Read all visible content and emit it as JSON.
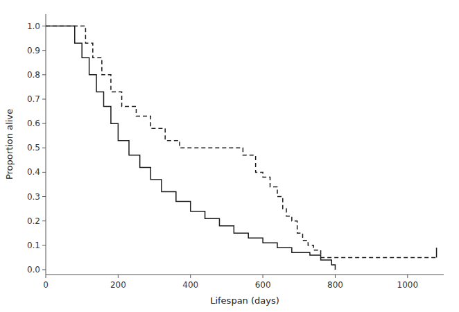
{
  "chart_data": {
    "type": "step",
    "xlabel": "Lifespan (days)",
    "ylabel": "Proportion alive",
    "xlim": [
      0,
      1100
    ],
    "ylim": [
      -0.02,
      1.05
    ],
    "xticks": [
      0,
      200,
      400,
      600,
      800,
      1000
    ],
    "yticks": [
      {
        "value": 0.0,
        "label": "0.0"
      },
      0.1,
      0.2,
      0.3,
      0.4,
      0.5,
      0.6,
      0.7,
      0.8,
      0.9,
      {
        "value": 1.0,
        "label": "1.0"
      }
    ],
    "color": "#1a1a1a",
    "grid": false,
    "series": [
      {
        "type": "step",
        "line_style": "solid",
        "x": [
          0,
          60,
          80,
          100,
          120,
          140,
          160,
          180,
          200,
          230,
          260,
          290,
          320,
          360,
          400,
          440,
          480,
          520,
          560,
          600,
          640,
          680,
          710,
          730,
          760,
          790,
          800
        ],
        "values": [
          1.0,
          1.0,
          0.93,
          0.87,
          0.8,
          0.73,
          0.67,
          0.6,
          0.53,
          0.47,
          0.42,
          0.37,
          0.32,
          0.28,
          0.24,
          0.21,
          0.18,
          0.15,
          0.13,
          0.11,
          0.09,
          0.07,
          0.07,
          0.06,
          0.04,
          0.02,
          0.0
        ]
      },
      {
        "type": "step",
        "line_style": "dashed",
        "x": [
          0,
          85,
          110,
          130,
          155,
          180,
          210,
          250,
          290,
          330,
          370,
          410,
          460,
          510,
          545,
          580,
          600,
          620,
          640,
          655,
          665,
          680,
          695,
          710,
          725,
          740,
          760,
          800,
          1080
        ],
        "values": [
          1.0,
          1.0,
          0.93,
          0.87,
          0.8,
          0.73,
          0.67,
          0.63,
          0.58,
          0.53,
          0.5,
          0.5,
          0.5,
          0.5,
          0.47,
          0.4,
          0.38,
          0.34,
          0.3,
          0.25,
          0.22,
          0.2,
          0.15,
          0.12,
          0.1,
          0.08,
          0.05,
          0.05,
          0.05
        ]
      },
      {
        "type": "line",
        "line_style": "solid",
        "x": [
          1080,
          1080
        ],
        "values": [
          0.05,
          0.09
        ]
      }
    ]
  }
}
